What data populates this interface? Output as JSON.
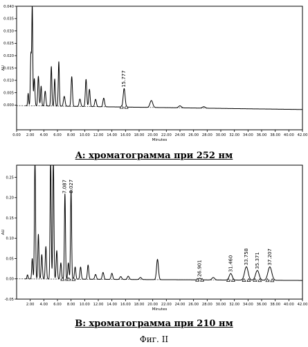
{
  "figure_label": "Фиг. II",
  "chart_data": [
    {
      "type": "line",
      "caption": "A: хроматограмма при 252 нм",
      "ylabel": "AU",
      "xlabel": "Minutes",
      "xlim": [
        0,
        42
      ],
      "ylim": [
        -0.01,
        0.04
      ],
      "x_ticks": [
        0,
        2,
        4,
        6,
        8,
        10,
        12,
        14,
        16,
        18,
        20,
        22,
        24,
        26,
        28,
        30,
        32,
        34,
        36,
        38,
        40,
        42
      ],
      "x_tick_labels": [
        "0.00",
        "2.00",
        "4.00",
        "6.00",
        "8.00",
        "10.00",
        "12.00",
        "14.00",
        "16.00",
        "18.00",
        "20.00",
        "22.00",
        "24.00",
        "26.00",
        "28.00",
        "30.00",
        "32.00",
        "34.00",
        "36.00",
        "38.00",
        "40.00",
        "42.00"
      ],
      "y_ticks": [
        0.0,
        0.005,
        0.01,
        0.015,
        0.02,
        0.025,
        0.03,
        0.035,
        0.04
      ],
      "y_tick_labels": [
        "0.000",
        "0.005",
        "0.010",
        "0.015",
        "0.020",
        "0.025",
        "0.030",
        "0.035",
        "0.040"
      ],
      "baseline": [
        [
          0,
          -0.0002
        ],
        [
          42,
          -0.0018
        ]
      ],
      "peaks": [
        {
          "x": 1.7,
          "y": 0.005,
          "w": 0.07
        },
        {
          "x": 2.1,
          "y": 0.021,
          "w": 0.08
        },
        {
          "x": 2.3,
          "y": 0.04,
          "w": 0.07
        },
        {
          "x": 2.6,
          "y": 0.011,
          "w": 0.09
        },
        {
          "x": 3.2,
          "y": 0.012,
          "w": 0.09
        },
        {
          "x": 3.6,
          "y": 0.008,
          "w": 0.08
        },
        {
          "x": 4.2,
          "y": 0.006,
          "w": 0.1
        },
        {
          "x": 5.1,
          "y": 0.016,
          "w": 0.08
        },
        {
          "x": 5.6,
          "y": 0.011,
          "w": 0.08
        },
        {
          "x": 6.2,
          "y": 0.018,
          "w": 0.08
        },
        {
          "x": 7.0,
          "y": 0.004,
          "w": 0.12
        },
        {
          "x": 8.1,
          "y": 0.012,
          "w": 0.1
        },
        {
          "x": 9.3,
          "y": 0.003,
          "w": 0.12
        },
        {
          "x": 10.2,
          "y": 0.011,
          "w": 0.1
        },
        {
          "x": 10.7,
          "y": 0.007,
          "w": 0.1
        },
        {
          "x": 11.6,
          "y": 0.003,
          "w": 0.12
        },
        {
          "x": 12.8,
          "y": 0.0035,
          "w": 0.12
        },
        {
          "x": 15.8,
          "y": 0.0075,
          "w": 0.14
        },
        {
          "x": 19.8,
          "y": 0.0028,
          "w": 0.2
        },
        {
          "x": 24.0,
          "y": 0.0008,
          "w": 0.2
        },
        {
          "x": 27.5,
          "y": 0.0006,
          "w": 0.2
        }
      ],
      "labeled_peaks": [
        {
          "label": "15.777",
          "x": 15.777,
          "y": 0.0075
        }
      ]
    },
    {
      "type": "line",
      "caption": "B: хроматограмма при 210 нм",
      "ylabel": "AU",
      "xlabel": "Minutes",
      "xlim": [
        0,
        42
      ],
      "ylim": [
        -0.05,
        0.28
      ],
      "x_ticks": [
        2,
        4,
        6,
        8,
        10,
        12,
        14,
        16,
        18,
        20,
        22,
        24,
        26,
        28,
        30,
        32,
        34,
        36,
        38,
        40,
        42
      ],
      "x_tick_labels": [
        "2.00",
        "4.00",
        "6.00",
        "8.00",
        "10.00",
        "12.00",
        "14.00",
        "16.00",
        "18.00",
        "20.00",
        "22.00",
        "24.00",
        "26.00",
        "28.00",
        "30.00",
        "32.00",
        "34.00",
        "36.00",
        "38.00",
        "40.00",
        "42.00"
      ],
      "y_ticks": [
        -0.05,
        0.0,
        0.05,
        0.1,
        0.15,
        0.2,
        0.25
      ],
      "y_tick_labels": [
        "-0.05",
        "0.00",
        "0.05",
        "0.10",
        "0.15",
        "0.20",
        "0.25"
      ],
      "baseline": [
        [
          0,
          0.0
        ],
        [
          42,
          -0.004
        ]
      ],
      "peaks": [
        {
          "x": 1.6,
          "y": 0.01,
          "w": 0.08
        },
        {
          "x": 2.3,
          "y": 0.05,
          "w": 0.08
        },
        {
          "x": 2.7,
          "y": 0.3,
          "w": 0.08
        },
        {
          "x": 3.2,
          "y": 0.11,
          "w": 0.08
        },
        {
          "x": 3.7,
          "y": 0.06,
          "w": 0.09
        },
        {
          "x": 4.3,
          "y": 0.08,
          "w": 0.09
        },
        {
          "x": 5.0,
          "y": 0.3,
          "w": 0.08
        },
        {
          "x": 5.4,
          "y": 0.3,
          "w": 0.08
        },
        {
          "x": 5.9,
          "y": 0.07,
          "w": 0.09
        },
        {
          "x": 6.5,
          "y": 0.04,
          "w": 0.09
        },
        {
          "x": 7.1,
          "y": 0.21,
          "w": 0.08
        },
        {
          "x": 7.6,
          "y": 0.04,
          "w": 0.09
        },
        {
          "x": 8.0,
          "y": 0.22,
          "w": 0.08
        },
        {
          "x": 8.6,
          "y": 0.03,
          "w": 0.1
        },
        {
          "x": 9.4,
          "y": 0.03,
          "w": 0.1
        },
        {
          "x": 10.5,
          "y": 0.035,
          "w": 0.1
        },
        {
          "x": 11.6,
          "y": 0.012,
          "w": 0.12
        },
        {
          "x": 12.7,
          "y": 0.017,
          "w": 0.12
        },
        {
          "x": 14.0,
          "y": 0.015,
          "w": 0.12
        },
        {
          "x": 15.3,
          "y": 0.007,
          "w": 0.14
        },
        {
          "x": 16.4,
          "y": 0.008,
          "w": 0.14
        },
        {
          "x": 18.2,
          "y": 0.005,
          "w": 0.16
        },
        {
          "x": 20.7,
          "y": 0.05,
          "w": 0.14
        },
        {
          "x": 26.9,
          "y": 0.004,
          "w": 0.2
        },
        {
          "x": 28.9,
          "y": 0.006,
          "w": 0.2
        },
        {
          "x": 31.46,
          "y": 0.016,
          "w": 0.22
        },
        {
          "x": 33.758,
          "y": 0.033,
          "w": 0.26
        },
        {
          "x": 35.371,
          "y": 0.024,
          "w": 0.26
        },
        {
          "x": 37.207,
          "y": 0.033,
          "w": 0.28
        }
      ],
      "labeled_peaks": [
        {
          "label": "7.087",
          "x": 7.087,
          "y": 0.21
        },
        {
          "label": "8.027",
          "x": 8.027,
          "y": 0.22
        },
        {
          "label": "26.901",
          "x": 26.901,
          "y": 0.004
        },
        {
          "label": "31.460",
          "x": 31.46,
          "y": 0.016
        },
        {
          "label": "33.758",
          "x": 33.758,
          "y": 0.033
        },
        {
          "label": "35.371",
          "x": 35.371,
          "y": 0.024
        },
        {
          "label": "37.207",
          "x": 37.207,
          "y": 0.033
        }
      ]
    }
  ]
}
